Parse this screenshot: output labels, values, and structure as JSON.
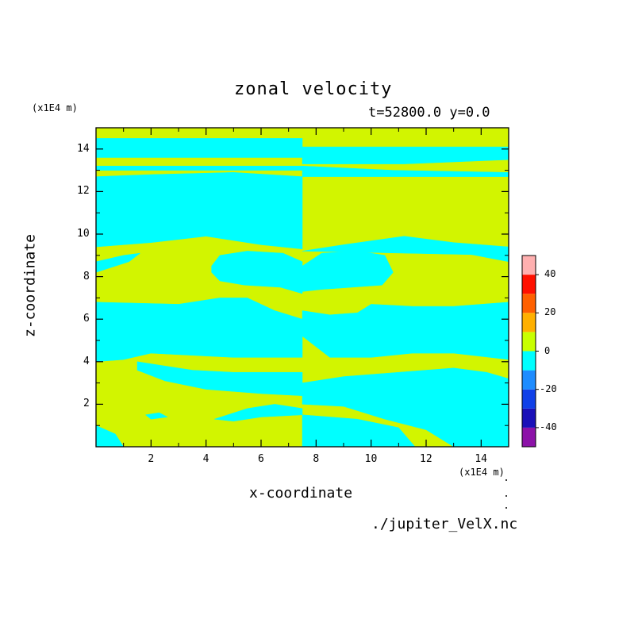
{
  "chart_data": {
    "type": "heatmap",
    "title": "zonal velocity",
    "subtitle": "t=52800.0 y=0.0",
    "xlabel": "x-coordinate",
    "ylabel": "z-coordinate",
    "x_unit": "(x1E4 m)",
    "z_unit": "(x1E4 m)",
    "source": "./jupiter_VelX.nc",
    "xlim": [
      0,
      15
    ],
    "ylim": [
      0,
      15
    ],
    "x_ticks": [
      2,
      4,
      6,
      8,
      10,
      12,
      14
    ],
    "y_ticks": [
      2,
      4,
      6,
      8,
      10,
      12,
      14
    ],
    "colorbar": {
      "levels": [
        -50,
        -40,
        -30,
        -20,
        -10,
        0,
        10,
        20,
        30,
        40,
        50
      ],
      "colors": [
        "#8c12a8",
        "#1a10b8",
        "#1040e8",
        "#1e8cff",
        "#00ffff",
        "#c8ff00",
        "#ffb000",
        "#ff6000",
        "#ff1000",
        "#ffb0b0"
      ],
      "tick_labels": [
        "40",
        "20",
        "0",
        "-20",
        "-40"
      ],
      "tick_values": [
        40,
        20,
        0,
        -20,
        -40
      ]
    },
    "colors": {
      "positive": "#d2f500",
      "negative": "#00ffff"
    },
    "regions_negative": [
      [
        [
          0,
          14.5
        ],
        [
          7.5,
          14.5
        ],
        [
          7.5,
          13.6
        ],
        [
          0,
          13.6
        ]
      ],
      [
        [
          0,
          13.2
        ],
        [
          7.5,
          13.2
        ],
        [
          7.5,
          13
        ],
        [
          0,
          13
        ]
      ],
      [
        [
          7.5,
          14.1
        ],
        [
          15,
          14.1
        ],
        [
          15,
          13.5
        ],
        [
          11.2,
          13.3
        ],
        [
          7.5,
          13.3
        ]
      ],
      [
        [
          7.5,
          13.2
        ],
        [
          10.8,
          13.0
        ],
        [
          15,
          12.9
        ],
        [
          15,
          12.7
        ],
        [
          7.5,
          12.7
        ]
      ],
      [
        [
          0,
          12.7
        ],
        [
          0,
          9.4
        ],
        [
          2,
          9.6
        ],
        [
          4,
          9.9
        ],
        [
          6,
          9.5
        ],
        [
          7.5,
          9.3
        ],
        [
          7.5,
          12.7
        ],
        [
          5,
          12.9
        ],
        [
          2,
          12.8
        ]
      ],
      [
        [
          7.5,
          9.2
        ],
        [
          9,
          9.5
        ],
        [
          11.2,
          9.9
        ],
        [
          13,
          9.6
        ],
        [
          15,
          9.4
        ],
        [
          15,
          8.7
        ],
        [
          14.2,
          8.9
        ],
        [
          13.4,
          9.1
        ],
        [
          15,
          9.0
        ]
      ],
      [
        [
          0,
          8.7
        ],
        [
          1,
          9.0
        ],
        [
          1.6,
          9.1
        ],
        [
          1.2,
          8.7
        ],
        [
          0,
          8.2
        ]
      ],
      [
        [
          4.2,
          8.5
        ],
        [
          4.5,
          9
        ],
        [
          5.5,
          9.2
        ],
        [
          6.8,
          9.1
        ],
        [
          7.5,
          8.7
        ],
        [
          7.5,
          7.2
        ],
        [
          6.7,
          7.5
        ],
        [
          5.4,
          7.6
        ],
        [
          4.5,
          7.8
        ],
        [
          4.2,
          8.2
        ]
      ],
      [
        [
          7.5,
          8.5
        ],
        [
          8.2,
          9.1
        ],
        [
          9.5,
          9.2
        ],
        [
          10.5,
          9.0
        ],
        [
          10.8,
          8.2
        ],
        [
          10.4,
          7.6
        ],
        [
          9.3,
          7.5
        ],
        [
          8.2,
          7.4
        ],
        [
          7.5,
          7.3
        ]
      ],
      [
        [
          0,
          6.8
        ],
        [
          0,
          4.0
        ],
        [
          1,
          4.1
        ],
        [
          2,
          4.4
        ],
        [
          3.5,
          4.3
        ],
        [
          5,
          4.2
        ],
        [
          6.5,
          4.2
        ],
        [
          7.5,
          4.2
        ],
        [
          7.5,
          6.0
        ],
        [
          6.5,
          6.4
        ],
        [
          5.5,
          7.0
        ],
        [
          4.5,
          7.0
        ],
        [
          3,
          6.7
        ]
      ],
      [
        [
          7.5,
          6.4
        ],
        [
          8.5,
          6.2
        ],
        [
          9.5,
          6.3
        ],
        [
          10,
          6.7
        ],
        [
          11.5,
          6.6
        ],
        [
          13,
          6.6
        ],
        [
          15,
          6.8
        ],
        [
          15,
          4.1
        ],
        [
          13,
          4.4
        ],
        [
          11.5,
          4.4
        ],
        [
          10,
          4.2
        ],
        [
          8.5,
          4.2
        ],
        [
          7.5,
          5.2
        ]
      ],
      [
        [
          1.5,
          4.0
        ],
        [
          2.5,
          3.8
        ],
        [
          3.5,
          3.6
        ],
        [
          5,
          3.5
        ],
        [
          6.5,
          3.5
        ],
        [
          7.5,
          3.5
        ],
        [
          7.5,
          2.4
        ],
        [
          6,
          2.5
        ],
        [
          4,
          2.7
        ],
        [
          2.5,
          3.1
        ],
        [
          1.5,
          3.6
        ]
      ],
      [
        [
          7.5,
          3.0
        ],
        [
          9,
          3.3
        ],
        [
          11,
          3.5
        ],
        [
          13,
          3.7
        ],
        [
          14.2,
          3.5
        ],
        [
          15,
          3.2
        ],
        [
          15,
          0
        ],
        [
          13,
          0
        ],
        [
          12,
          0.8
        ],
        [
          10.5,
          1.3
        ],
        [
          9,
          1.9
        ],
        [
          7.5,
          2.0
        ]
      ],
      [
        [
          4.3,
          1.3
        ],
        [
          5.5,
          1.8
        ],
        [
          6.5,
          2.0
        ],
        [
          7.5,
          1.8
        ],
        [
          7.5,
          1.5
        ],
        [
          6,
          1.4
        ],
        [
          5,
          1.2
        ]
      ],
      [
        [
          1.8,
          1.5
        ],
        [
          2.3,
          1.6
        ],
        [
          2.6,
          1.4
        ],
        [
          2,
          1.3
        ]
      ],
      [
        [
          0,
          1.0
        ],
        [
          0.7,
          0.6
        ],
        [
          1.0,
          0
        ],
        [
          0,
          0
        ]
      ],
      [
        [
          7.5,
          0
        ],
        [
          7.5,
          1.5
        ],
        [
          9.5,
          1.3
        ],
        [
          11,
          0.9
        ],
        [
          11.6,
          0
        ]
      ],
      [
        [
          12.9,
          1.4
        ],
        [
          13.7,
          1.5
        ],
        [
          13.9,
          1.3
        ],
        [
          13.1,
          1.3
        ]
      ],
      [
        [
          14.2,
          0
        ],
        [
          15,
          0
        ],
        [
          15,
          0.9
        ],
        [
          14.5,
          0.5
        ]
      ]
    ]
  }
}
